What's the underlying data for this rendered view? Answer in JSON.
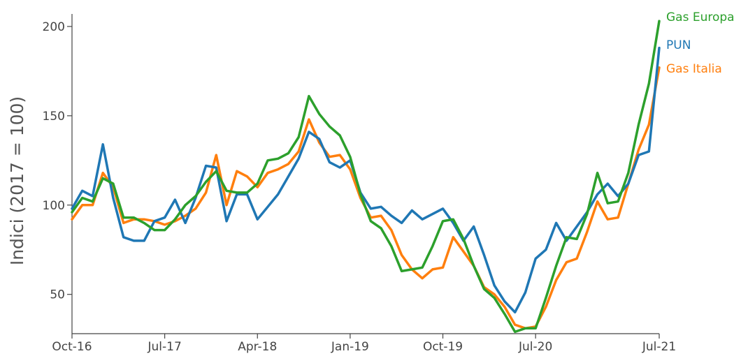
{
  "chart_data": {
    "type": "line",
    "title": "",
    "xlabel": "",
    "ylabel": "Indici (2017 = 100)",
    "xlim": [
      "2016-10",
      "2021-07"
    ],
    "ylim": [
      28,
      207
    ],
    "x_ticks": [
      {
        "date": "2016-10",
        "label": "Oct-16"
      },
      {
        "date": "2017-07",
        "label": "Jul-17"
      },
      {
        "date": "2018-04",
        "label": "Apr-18"
      },
      {
        "date": "2019-01",
        "label": "Jan-19"
      },
      {
        "date": "2019-10",
        "label": "Oct-19"
      },
      {
        "date": "2020-07",
        "label": "Jul-20"
      },
      {
        "date": "2021-07",
        "label": "Jul-21"
      }
    ],
    "y_ticks": [
      50,
      100,
      150,
      200
    ],
    "grid": false,
    "legend": "end-of-line labels, top-right",
    "x": [
      "2016-10",
      "2016-11",
      "2016-12",
      "2017-01",
      "2017-02",
      "2017-03",
      "2017-04",
      "2017-05",
      "2017-06",
      "2017-07",
      "2017-08",
      "2017-09",
      "2017-10",
      "2017-11",
      "2017-12",
      "2018-01",
      "2018-02",
      "2018-03",
      "2018-04",
      "2018-05",
      "2018-06",
      "2018-07",
      "2018-08",
      "2018-09",
      "2018-10",
      "2018-11",
      "2018-12",
      "2019-01",
      "2019-02",
      "2019-03",
      "2019-04",
      "2019-05",
      "2019-06",
      "2019-07",
      "2019-08",
      "2019-09",
      "2019-10",
      "2019-11",
      "2019-12",
      "2020-01",
      "2020-02",
      "2020-03",
      "2020-04",
      "2020-05",
      "2020-06",
      "2020-07",
      "2020-08",
      "2020-09",
      "2020-10",
      "2020-11",
      "2020-12",
      "2021-01",
      "2021-02",
      "2021-03",
      "2021-04",
      "2021-05",
      "2021-06",
      "2021-07"
    ],
    "series": [
      {
        "name": "Gas Europa",
        "color": "#2ca02c",
        "values": [
          96,
          104,
          102,
          115,
          112,
          93,
          93,
          90,
          86,
          86,
          92,
          100,
          105,
          113,
          119,
          108,
          107,
          107,
          112,
          125,
          126,
          129,
          138,
          161,
          151,
          144,
          139,
          127,
          106,
          91,
          87,
          77,
          63,
          64,
          65,
          77,
          91,
          92,
          81,
          66,
          53,
          48,
          39,
          29,
          31,
          31,
          48,
          66,
          82,
          81,
          95,
          118,
          101,
          102,
          118,
          145,
          168,
          203
        ]
      },
      {
        "name": "PUN",
        "color": "#1f77b4",
        "values": [
          98,
          108,
          105,
          134,
          104,
          82,
          80,
          80,
          91,
          93,
          103,
          90,
          104,
          122,
          121,
          91,
          106,
          106,
          92,
          99,
          106,
          116,
          126,
          141,
          137,
          124,
          121,
          125,
          107,
          98,
          99,
          94,
          90,
          97,
          92,
          95,
          98,
          90,
          80,
          88,
          72,
          55,
          46,
          40,
          51,
          70,
          75,
          90,
          80,
          88,
          96,
          106,
          112,
          105,
          112,
          128,
          130,
          188
        ]
      },
      {
        "name": "Gas Italia",
        "color": "#ff7f0e",
        "values": [
          92,
          100,
          100,
          118,
          110,
          90,
          92,
          92,
          91,
          89,
          91,
          94,
          98,
          107,
          128,
          100,
          119,
          116,
          110,
          118,
          120,
          123,
          130,
          148,
          135,
          127,
          128,
          120,
          104,
          93,
          94,
          86,
          72,
          64,
          59,
          64,
          65,
          82,
          74,
          66,
          54,
          50,
          43,
          33,
          31,
          32,
          43,
          58,
          68,
          70,
          85,
          102,
          92,
          93,
          112,
          131,
          145,
          177
        ]
      }
    ]
  }
}
